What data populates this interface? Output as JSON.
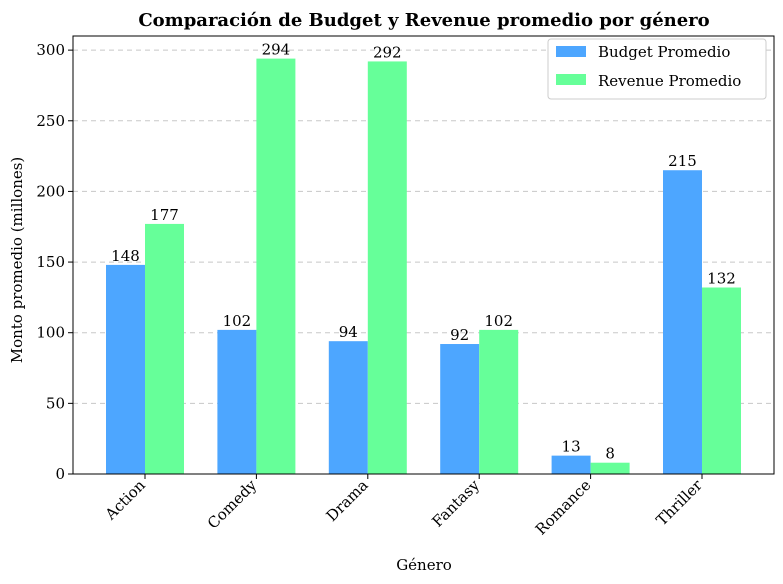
{
  "chart_data": {
    "type": "bar",
    "title": "Comparación de Budget y Revenue promedio por género",
    "xlabel": "Género",
    "ylabel": "Monto promedio (millones)",
    "categories": [
      "Action",
      "Comedy",
      "Drama",
      "Fantasy",
      "Romance",
      "Thriller"
    ],
    "series": [
      {
        "name": "Budget Promedio",
        "color": "#4da6ff",
        "values": [
          148,
          102,
          94,
          92,
          13,
          215
        ],
        "labels": [
          "148",
          "102",
          "94",
          "92",
          "13",
          "215"
        ]
      },
      {
        "name": "Revenue Promedio",
        "color": "#66ff99",
        "values": [
          177,
          294,
          292,
          102,
          8,
          132
        ],
        "labels": [
          "177",
          "294",
          "292",
          "102",
          "8",
          "132"
        ]
      }
    ],
    "ylim": [
      0,
      310
    ],
    "yticks": [
      0,
      50,
      100,
      150,
      200,
      250,
      300
    ],
    "grid": "y-dashed",
    "legend_position": "top-right"
  }
}
